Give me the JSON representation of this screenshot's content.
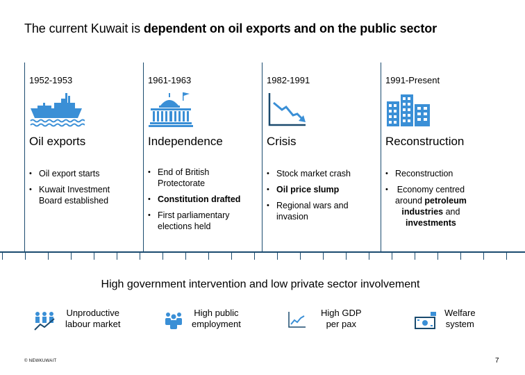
{
  "title": {
    "prefix": "The current Kuwait is ",
    "bold": "dependent on oil exports and on the public sector"
  },
  "timeline": [
    {
      "period": "1952-1953",
      "icon": "ship-icon",
      "heading": "Oil exports",
      "bullets": [
        {
          "lines": [
            "Oil export starts"
          ],
          "bold": [
            false
          ]
        },
        {
          "lines": [
            "Kuwait Investment",
            "Board established"
          ],
          "bold": [
            false,
            false
          ]
        }
      ]
    },
    {
      "period": "1961-1963",
      "icon": "parliament-icon",
      "heading": "Independence",
      "bullets": [
        {
          "lines": [
            "End of British",
            "Protectorate"
          ],
          "bold": [
            false,
            false
          ]
        },
        {
          "lines": [
            "Constitution drafted"
          ],
          "bold": [
            true
          ]
        },
        {
          "lines": [
            "First parliamentary",
            "elections held"
          ],
          "bold": [
            false,
            false
          ]
        }
      ]
    },
    {
      "period": "1982-1991",
      "icon": "declining-chart-icon",
      "heading": "Crisis",
      "bullets": [
        {
          "lines": [
            "Stock market crash"
          ],
          "bold": [
            false
          ]
        },
        {
          "lines": [
            "Oil price slump"
          ],
          "bold": [
            true
          ]
        },
        {
          "lines": [
            "Regional wars and",
            "invasion"
          ],
          "bold": [
            false,
            false
          ]
        }
      ]
    },
    {
      "period": "1991-Present",
      "icon": "buildings-icon",
      "heading": "Reconstruction",
      "bullets": [
        {
          "lines": [
            "Reconstruction"
          ],
          "bold": [
            false
          ]
        },
        {
          "lines": [
            "Economy centred",
            "around petroleum",
            "industries and",
            "investments"
          ],
          "bold": [
            false,
            false,
            false,
            false
          ]
        }
      ]
    }
  ],
  "subtitle": "High government intervention and low private sector involvement",
  "facts": [
    {
      "icon": "people-chart-icon",
      "label_line1": "Unproductive",
      "label_line2": "labour market"
    },
    {
      "icon": "group-icon",
      "label_line1": "High public",
      "label_line2": "employment"
    },
    {
      "icon": "growth-chart-icon",
      "label_line1": "High GDP",
      "label_line2": "per pax"
    },
    {
      "icon": "money-icon",
      "label_line1": "Welfare",
      "label_line2": "system"
    }
  ],
  "footer": {
    "copyright": "© NEWKUWAIT",
    "page_number": "7"
  },
  "colors": {
    "accent_blue": "#3a8fd6",
    "axis_navy": "#1a4a6e"
  }
}
